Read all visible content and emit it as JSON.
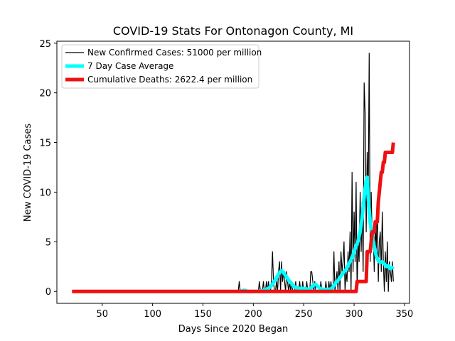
{
  "chart_data": {
    "type": "line",
    "title": "COVID-19 Stats For Ontonagon County, MI",
    "xlabel": "Days Since 2020 Began",
    "ylabel": "New COVID-19 Cases",
    "xlim": [
      5,
      355
    ],
    "ylim": [
      -1.2,
      25.2
    ],
    "xticks": [
      50,
      100,
      150,
      200,
      250,
      300,
      350
    ],
    "yticks": [
      0,
      5,
      10,
      15,
      20,
      25
    ],
    "grid": false,
    "legend_position": "top-left",
    "series": [
      {
        "name": "New Confirmed Cases: 51000 per million",
        "color": "#000000",
        "x": [
          185,
          186,
          187,
          188,
          190,
          192,
          195,
          200,
          205,
          206,
          207,
          208,
          209,
          210,
          211,
          212,
          213,
          214,
          215,
          216,
          217,
          218,
          219,
          220,
          221,
          222,
          223,
          224,
          225,
          226,
          227,
          228,
          229,
          230,
          231,
          232,
          233,
          234,
          235,
          236,
          237,
          238,
          239,
          240,
          241,
          242,
          243,
          244,
          245,
          246,
          247,
          248,
          249,
          250,
          251,
          252,
          253,
          254,
          255,
          256,
          257,
          258,
          259,
          260,
          261,
          262,
          263,
          264,
          265,
          266,
          267,
          268,
          269,
          270,
          271,
          272,
          273,
          274,
          275,
          276,
          277,
          278,
          279,
          280,
          281,
          282,
          283,
          284,
          285,
          286,
          287,
          288,
          289,
          290,
          291,
          292,
          293,
          294,
          295,
          296,
          297,
          298,
          299,
          300,
          301,
          302,
          303,
          304,
          305,
          306,
          307,
          308,
          309,
          310,
          311,
          312,
          313,
          314,
          315,
          316,
          317,
          318,
          319,
          320,
          321,
          322,
          323,
          324,
          325,
          326,
          327,
          328,
          329,
          330,
          331,
          332,
          333,
          334,
          335,
          336,
          337,
          338,
          339
        ],
        "values": [
          0,
          1,
          0,
          0,
          0,
          0,
          0,
          0,
          0,
          1,
          0,
          0,
          0,
          1,
          0,
          0,
          1,
          0,
          1,
          0,
          0,
          1,
          4,
          1,
          0,
          0,
          1,
          0,
          2,
          3,
          0,
          3,
          1,
          2,
          1,
          0,
          2,
          1,
          0,
          1,
          0,
          1,
          0,
          0,
          0,
          1,
          0,
          0,
          0,
          1,
          0,
          0,
          1,
          0,
          0,
          0,
          1,
          0,
          0,
          0,
          2,
          2,
          1,
          0,
          1,
          0,
          0,
          0,
          0,
          0,
          1,
          0,
          0,
          0,
          0,
          1,
          0,
          0,
          1,
          0,
          1,
          0,
          0,
          4,
          0,
          1,
          2,
          0,
          3,
          0,
          4,
          2,
          3,
          5,
          0,
          2,
          1,
          4,
          2,
          6,
          0,
          12,
          2,
          8,
          3,
          11,
          0,
          5,
          3,
          10,
          4,
          9,
          2,
          21,
          18,
          6,
          14,
          9,
          24,
          3,
          10,
          5,
          6,
          2,
          7,
          4,
          9,
          1,
          5,
          6,
          2,
          8,
          3,
          0,
          4,
          1,
          5,
          0,
          3,
          2,
          1,
          3,
          1
        ]
      },
      {
        "name": "7 Day Case Average",
        "color": "#00ffff",
        "x": [
          188,
          190,
          192,
          194,
          196,
          198,
          200,
          205,
          210,
          215,
          218,
          220,
          222,
          224,
          226,
          228,
          230,
          232,
          234,
          236,
          238,
          240,
          245,
          250,
          255,
          258,
          260,
          262,
          264,
          266,
          270,
          275,
          278,
          280,
          282,
          284,
          286,
          288,
          290,
          292,
          294,
          296,
          298,
          300,
          302,
          304,
          306,
          308,
          310,
          312,
          313,
          314,
          316,
          318,
          320,
          322,
          324,
          326,
          328,
          330,
          332,
          334,
          336,
          338,
          339
        ],
        "values": [
          0,
          0.1,
          0.1,
          0,
          0,
          0,
          0,
          0,
          0.1,
          0.3,
          0.6,
          0.9,
          1.2,
          1.6,
          1.9,
          2.1,
          1.9,
          1.6,
          1.3,
          1.0,
          0.8,
          0.5,
          0.3,
          0.3,
          0.2,
          0.4,
          0.7,
          0.7,
          0.5,
          0.3,
          0.2,
          0.2,
          0.3,
          0.6,
          0.9,
          1.1,
          1.4,
          1.7,
          2.0,
          2.2,
          2.6,
          3.0,
          3.4,
          4.0,
          4.6,
          5.1,
          6.0,
          7.5,
          9.5,
          11.2,
          11.5,
          9.5,
          7.0,
          5.5,
          4.5,
          3.6,
          3.1,
          2.9,
          3.0,
          2.8,
          2.5,
          2.6,
          2.3,
          2.4,
          2.5
        ]
      },
      {
        "name": "Cumulative Deaths: 2622.4 per million",
        "color": "#ee1111",
        "x": [
          20,
          300,
          302,
          303,
          312,
          313,
          316,
          317,
          318,
          320,
          321,
          323,
          324,
          325,
          326,
          327,
          328,
          329,
          330,
          331,
          332,
          333,
          334,
          335,
          336,
          337,
          338,
          339
        ],
        "values": [
          0,
          0,
          0,
          1,
          1,
          4,
          4,
          5,
          6,
          6,
          7,
          7,
          9,
          10,
          11,
          12,
          12,
          13,
          13,
          14,
          14,
          14,
          14,
          14,
          14,
          14,
          14,
          15
        ]
      }
    ]
  }
}
